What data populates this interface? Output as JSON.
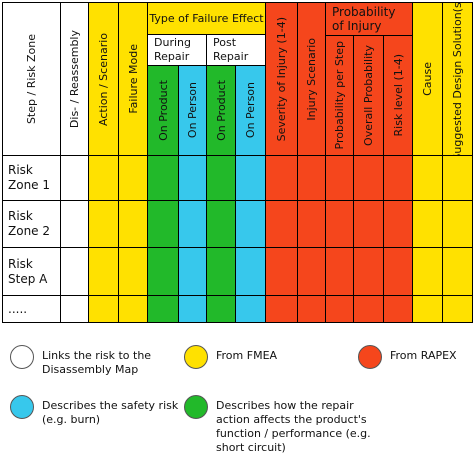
{
  "table": {
    "columns": [
      "Step / Risk Zone",
      "Dis- / Reassembly",
      "Action / Scenario",
      "Failure Mode",
      "On Product",
      "On Person",
      "On Product",
      "On Person",
      "Severity of Injury (1-4)",
      "Injury Scenario",
      "Probability per Step",
      "Overall Probability",
      "Risk level (1-4)",
      "Cause",
      "Suggested Design Solution(s)"
    ],
    "groups": [
      {
        "label": "Type of Failure Effect",
        "subgroups": [
          "During Repair",
          "Post Repair"
        ]
      },
      {
        "label": "Probability of Injury"
      }
    ],
    "rows": [
      "Risk Zone 1",
      "Risk Zone 2",
      "Risk Step A",
      "....."
    ]
  },
  "legend": [
    {
      "label": "Links the risk to the Disassembly Map"
    },
    {
      "label": "From FMEA"
    },
    {
      "label": "From RAPEX"
    },
    {
      "label": "Describes the safety risk (e.g. burn)"
    },
    {
      "label": "Describes how the repair action affects the product's function / performance (e.g. short circuit)"
    }
  ]
}
